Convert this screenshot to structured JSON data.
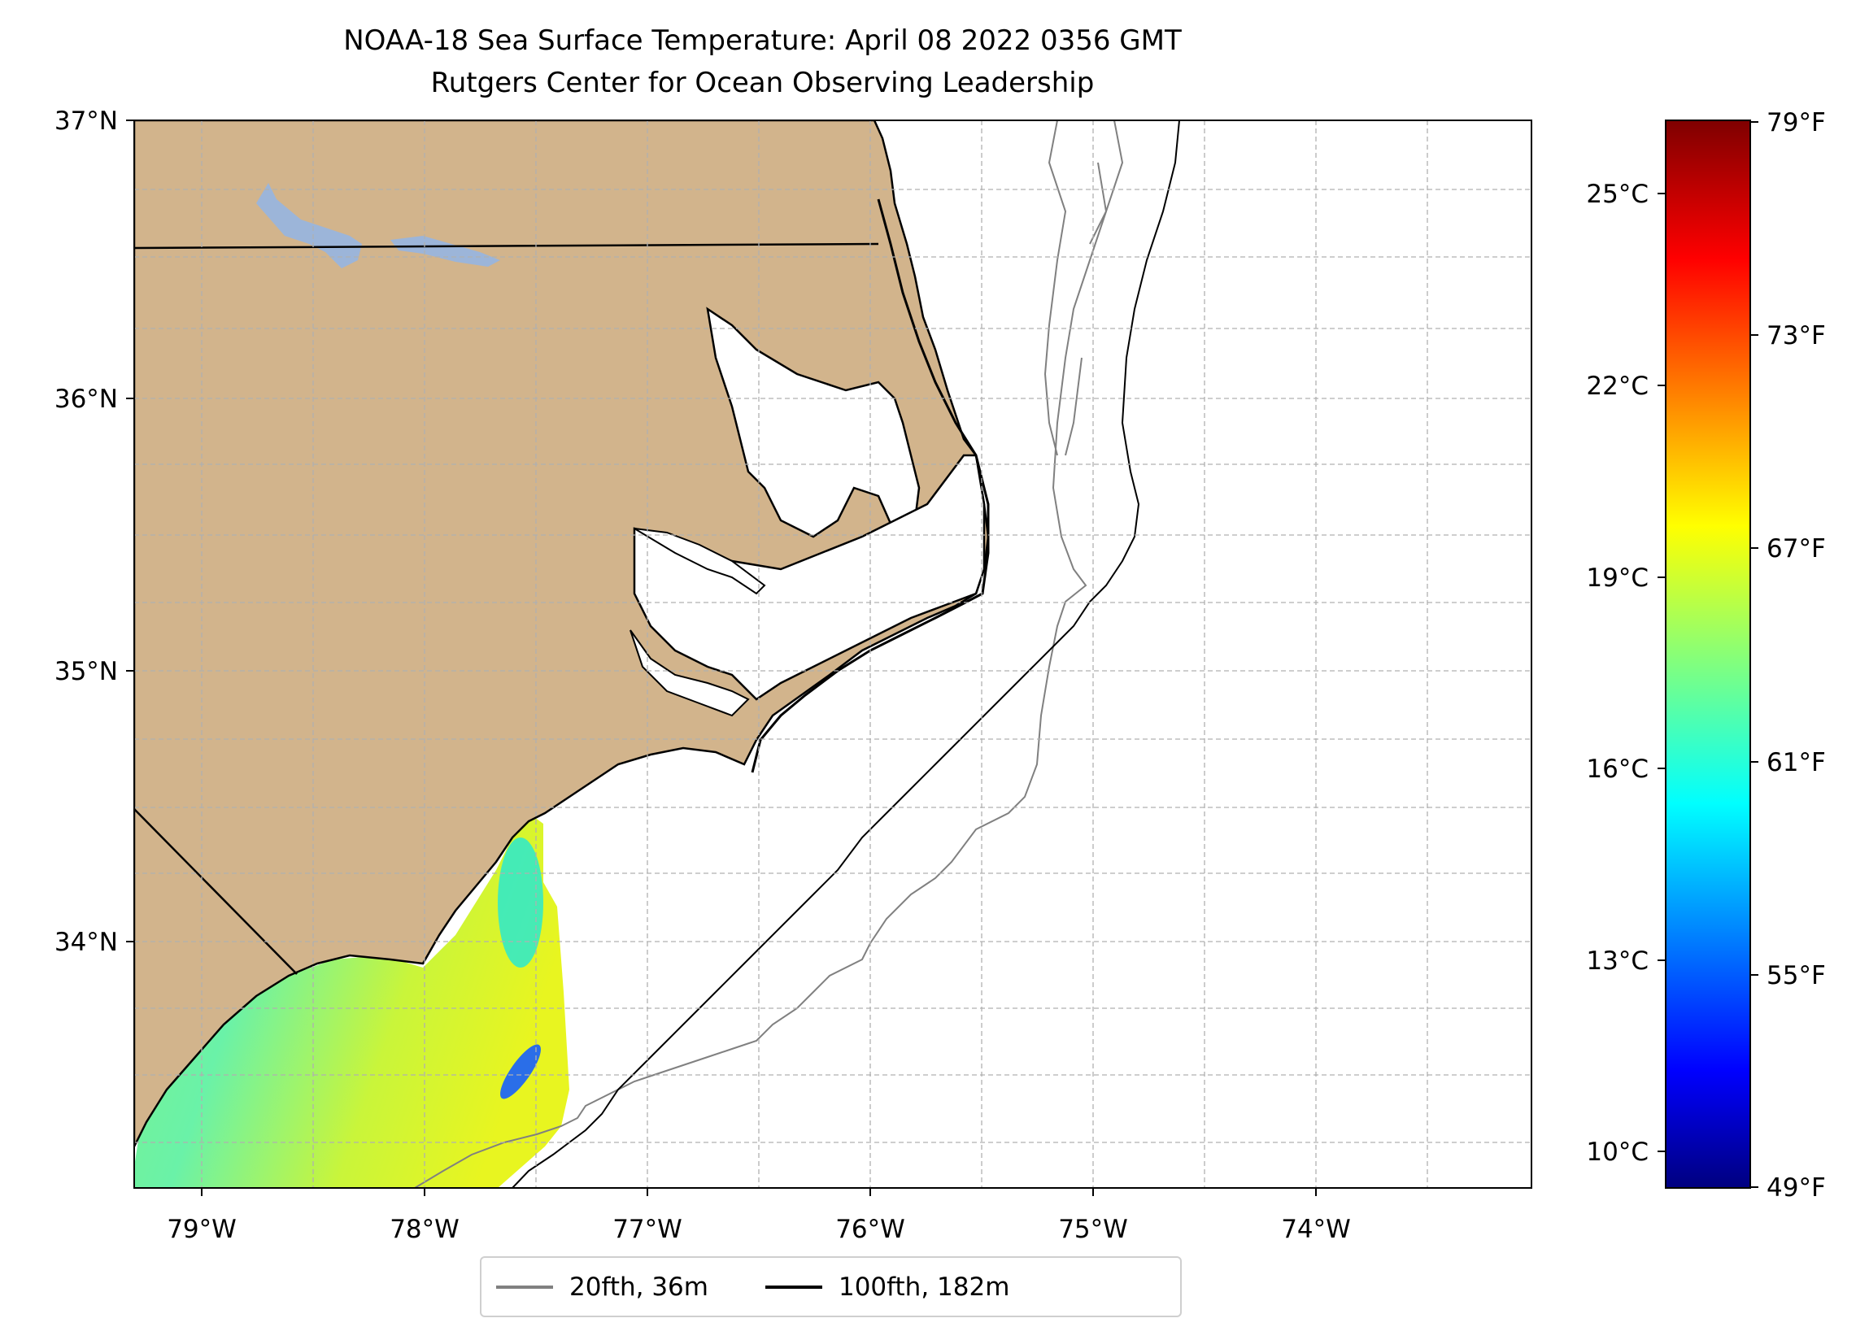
{
  "title": "NOAA-18 Sea Surface Temperature: April 08 2022 0356 GMT",
  "subtitle": "Rutgers Center for Ocean Observing Leadership",
  "map": {
    "lat_labels": [
      "37°N",
      "36°N",
      "35°N",
      "34°N"
    ],
    "lon_labels": [
      "79°W",
      "78°W",
      "77°W",
      "76°W",
      "75°W",
      "74°W"
    ],
    "lat_range": [
      33.1,
      37.0
    ],
    "lon_range": [
      -79.3,
      -73.05
    ],
    "land_color": "#d2b48c",
    "lake_color": "#9cb5d9"
  },
  "colorbar": {
    "celsius_labels": [
      "25°C",
      "22°C",
      "19°C",
      "16°C",
      "13°C",
      "10°C"
    ],
    "fahrenheit_labels": [
      "79°F",
      "73°F",
      "67°F",
      "61°F",
      "55°F",
      "49°F"
    ],
    "colormap": "jet",
    "range_f": [
      49,
      79
    ]
  },
  "legend": {
    "items": [
      {
        "label": "20fth, 36m",
        "color": "#808080"
      },
      {
        "label": "100fth, 182m",
        "color": "#000000"
      }
    ]
  }
}
